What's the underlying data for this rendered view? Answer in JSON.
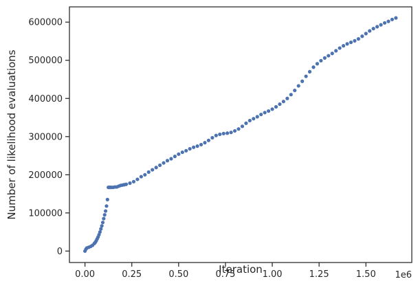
{
  "chart_data": {
    "type": "scatter",
    "title": "",
    "xlabel": "Iteration",
    "ylabel": "Number of likelihood evaluations",
    "x_offset_label": "1e6",
    "xlim": [
      -0.083,
      1.745
    ],
    "ylim": [
      -30000,
      640000
    ],
    "x_scale": 1000000,
    "xticks": [
      0.0,
      0.25,
      0.5,
      0.75,
      1.0,
      1.25,
      1.5
    ],
    "xtick_labels": [
      "0.00",
      "0.25",
      "0.50",
      "0.75",
      "1.00",
      "1.25",
      "1.50"
    ],
    "yticks": [
      0,
      100000,
      200000,
      300000,
      400000,
      500000,
      600000
    ],
    "ytick_labels": [
      "0",
      "100000",
      "200000",
      "300000",
      "400000",
      "500000",
      "600000"
    ],
    "grid": false,
    "legend": "none",
    "marker_color": "#4c72b0",
    "series": [
      {
        "x": [
          0,
          5000,
          10000,
          20000,
          30000,
          40000,
          50000,
          55000,
          60000,
          65000,
          70000,
          75000,
          80000,
          85000,
          90000,
          95000,
          100000,
          105000,
          110000,
          115000,
          120000,
          125000,
          130000,
          135000,
          140000,
          150000,
          160000,
          170000,
          180000,
          190000,
          200000,
          210000,
          220000,
          240000,
          260000,
          280000,
          300000,
          320000,
          340000,
          360000,
          380000,
          400000,
          420000,
          440000,
          460000,
          480000,
          500000,
          520000,
          540000,
          560000,
          580000,
          600000,
          620000,
          640000,
          660000,
          680000,
          700000,
          720000,
          740000,
          760000,
          780000,
          800000,
          820000,
          840000,
          860000,
          880000,
          900000,
          920000,
          940000,
          960000,
          980000,
          1000000,
          1020000,
          1040000,
          1060000,
          1080000,
          1100000,
          1120000,
          1140000,
          1160000,
          1180000,
          1200000,
          1220000,
          1240000,
          1260000,
          1280000,
          1300000,
          1320000,
          1340000,
          1360000,
          1380000,
          1400000,
          1420000,
          1440000,
          1460000,
          1480000,
          1500000,
          1520000,
          1540000,
          1560000,
          1580000,
          1600000,
          1620000,
          1640000,
          1660000
        ],
        "y": [
          0,
          5000,
          8000,
          10000,
          12000,
          15000,
          20000,
          23000,
          27000,
          32000,
          37000,
          43000,
          50000,
          58000,
          66000,
          75000,
          85000,
          95000,
          105000,
          118000,
          135000,
          167000,
          167000,
          167000,
          167000,
          167000,
          168000,
          168000,
          170000,
          172000,
          173000,
          174000,
          175000,
          178000,
          182000,
          188000,
          195000,
          200000,
          207000,
          213000,
          219000,
          225000,
          231000,
          237000,
          242000,
          248000,
          254000,
          259000,
          263000,
          268000,
          272000,
          275000,
          279000,
          284000,
          290000,
          297000,
          303000,
          306000,
          308000,
          309000,
          311000,
          315000,
          320000,
          327000,
          335000,
          342000,
          347000,
          352000,
          358000,
          363000,
          367000,
          372000,
          378000,
          385000,
          392000,
          400000,
          410000,
          421000,
          433000,
          445000,
          458000,
          470000,
          482000,
          491000,
          499000,
          506000,
          512000,
          518000,
          525000,
          532000,
          538000,
          543000,
          547000,
          551000,
          556000,
          563000,
          570000,
          577000,
          583000,
          588000,
          593000,
          598000,
          602000,
          607000,
          611000
        ]
      }
    ]
  }
}
